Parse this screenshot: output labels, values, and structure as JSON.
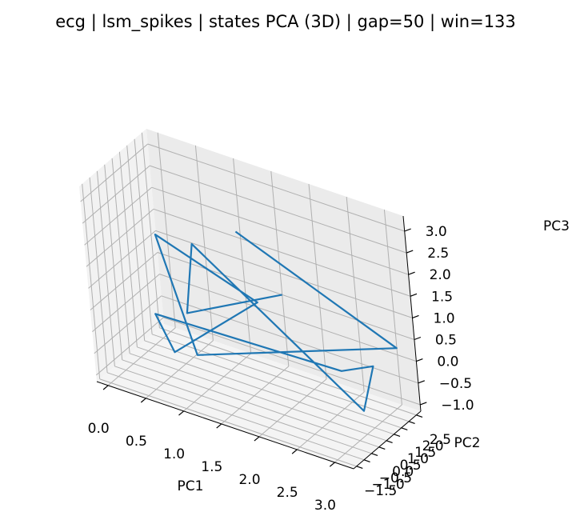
{
  "chart_data": {
    "type": "line",
    "projection": "3d",
    "title": "ecg | lsm_spikes | states PCA (3D) | gap=50 | win=133",
    "xlabel": "PC1",
    "ylabel": "PC2",
    "zlabel": "PC3",
    "xlim": [
      -0.15,
      3.25
    ],
    "ylim": [
      -1.7,
      2.8
    ],
    "zlim": [
      -1.15,
      3.35
    ],
    "xticks": [
      0.0,
      0.5,
      1.0,
      1.5,
      2.0,
      2.5,
      3.0
    ],
    "yticks": [
      -1.5,
      -1.0,
      -0.5,
      0.0,
      0.5,
      1.0,
      1.5,
      2.0,
      2.5
    ],
    "zticks": [
      -1.0,
      -0.5,
      0.0,
      0.5,
      1.0,
      1.5,
      2.0,
      2.5,
      3.0
    ],
    "xtick_labels": [
      "0.0",
      "0.5",
      "1.0",
      "1.5",
      "2.0",
      "2.5",
      "3.0"
    ],
    "ytick_labels": [
      "−1.5",
      "−1.0",
      "−0.5",
      "0.0",
      "0.5",
      "1.0",
      "1.5",
      "2.0",
      "2.5"
    ],
    "ztick_labels": [
      "−1.0",
      "−0.5",
      "0.0",
      "0.5",
      "1.0",
      "1.5",
      "2.0",
      "2.5",
      "3.0"
    ],
    "grid": true,
    "series": [
      {
        "color": "#1f77b4",
        "x": [
          1.6,
          3.15,
          0.95,
          0.3,
          1.35,
          0.6,
          0.25,
          2.7,
          3.05,
          3.2,
          0.7,
          0.75,
          1.5
        ],
        "y": [
          -0.2,
          2.1,
          -0.3,
          0.7,
          1.9,
          -0.1,
          0.5,
          0.6,
          1.0,
          -0.5,
          1.1,
          0.2,
          2.8
        ],
        "z": [
          2.9,
          0.45,
          -0.3,
          1.8,
          0.5,
          -0.5,
          0.0,
          0.1,
          0.3,
          -0.2,
          1.7,
          0.4,
          0.5
        ]
      }
    ]
  }
}
